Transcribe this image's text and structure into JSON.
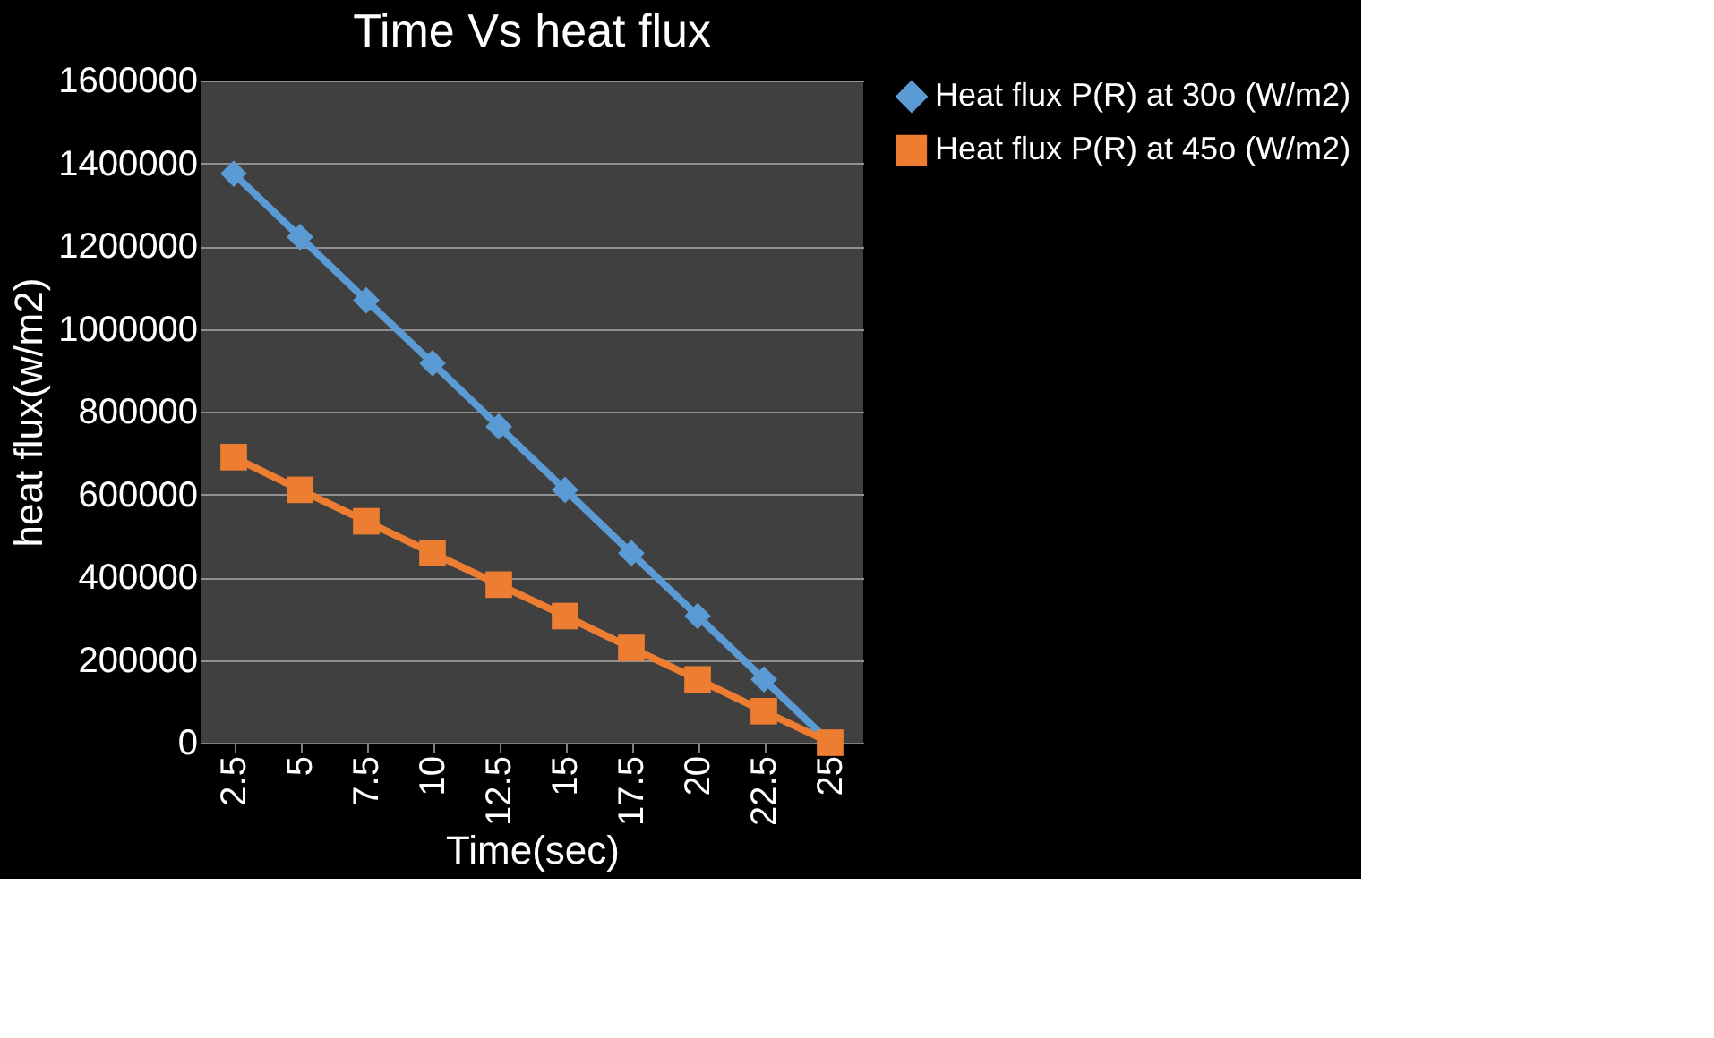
{
  "chart_data": {
    "type": "line",
    "title": "Time Vs heat flux",
    "xlabel": "Time(sec)",
    "ylabel": "heat flux(w/m2)",
    "categories": [
      "2.5",
      "5",
      "7.5",
      "10",
      "12.5",
      "15",
      "17.5",
      "20",
      "22.5",
      "25"
    ],
    "series": [
      {
        "name": "Heat flux P(R) at 30o (W/m2)",
        "color": "#5b9bd5",
        "marker": "diamond",
        "values": [
          1375000,
          1222000,
          1069000,
          917000,
          764000,
          611000,
          458000,
          306000,
          153000,
          0
        ]
      },
      {
        "name": "Heat flux P(R) at 45o (W/m2)",
        "color": "#ed7d31",
        "marker": "square",
        "values": [
          690000,
          611000,
          535000,
          458000,
          382000,
          306000,
          229000,
          153000,
          76000,
          0
        ]
      }
    ],
    "ylim": [
      0,
      1600000
    ],
    "yticks": [
      0,
      200000,
      400000,
      600000,
      800000,
      1000000,
      1200000,
      1400000,
      1600000
    ],
    "grid": "y",
    "legend": "right",
    "line_style": "solid"
  }
}
